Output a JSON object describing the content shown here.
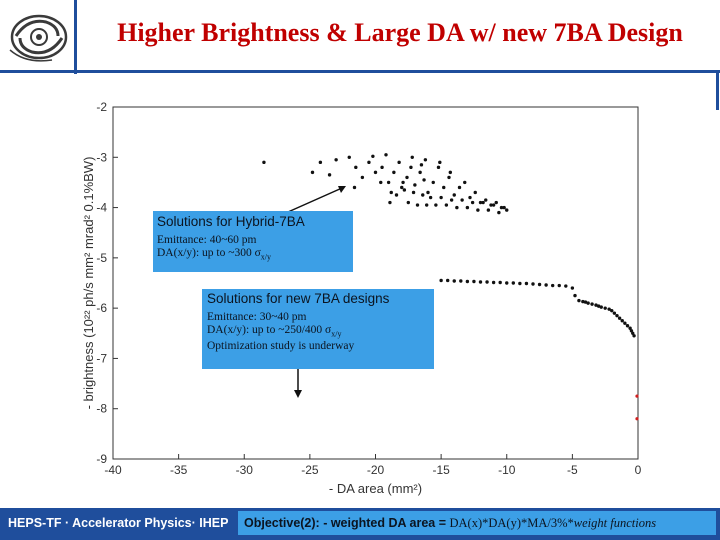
{
  "header": {
    "title": "Higher Brightness & Large DA w/ new 7BA Design"
  },
  "colors": {
    "title": "#c00000",
    "accent": "#1f4e9c",
    "box": "#3c9fe6"
  },
  "annotations": {
    "hybrid": {
      "heading": "Solutions for Hybrid-7BA",
      "line1": "Emittance: 40~60 pm",
      "line2_prefix": "DA(x/y): up to ~300 σ",
      "line2_sub": "x/y"
    },
    "new7ba": {
      "heading": "Solutions for new 7BA designs",
      "line1": "Emittance: 30~40 pm",
      "line2_prefix": "DA(x/y): up to ~250/400 σ",
      "line2_sub": "x/y",
      "line3": "Optimization study is underway"
    }
  },
  "footer": {
    "left": "HEPS-TF · Accelerator Physics· IHEP",
    "objective_label": "Objective(2):",
    "objective_text": " - weighted DA area = ",
    "formula": "DA(x)*DA(y)*MA/3%*",
    "formula_italic": "weight functions"
  },
  "chart_data": {
    "type": "scatter",
    "xlabel": "- DA area (mm²)",
    "ylabel": "- brightness (10²² ph/s mm² mrad² 0.1%BW)",
    "xlim": [
      -40,
      0
    ],
    "ylim": [
      -9,
      -2
    ],
    "xticks": [
      -40,
      -35,
      -30,
      -25,
      -20,
      -15,
      -10,
      -5,
      0
    ],
    "yticks": [
      -2,
      -3,
      -4,
      -5,
      -6,
      -7,
      -8,
      -9
    ],
    "series": [
      {
        "name": "Hybrid-7BA solutions",
        "x": [
          -28.5,
          -24.8,
          -24.2,
          -23.5,
          -23.0,
          -22.0,
          -21.5,
          -21.0,
          -20.5,
          -20.0,
          -19.5,
          -19.2,
          -19.0,
          -18.6,
          -18.2,
          -18.0,
          -17.6,
          -17.3,
          -17.0,
          -16.6,
          -16.2,
          -16.0,
          -15.6,
          -15.2,
          -14.8,
          -14.4,
          -14.0,
          -13.6,
          -13.2,
          -12.8,
          -12.4,
          -12.0,
          -11.6,
          -11.2,
          -10.8,
          -10.4,
          -10.0,
          -18.8,
          -18.4,
          -17.8,
          -17.1,
          -16.4,
          -15.8,
          -15.0,
          -14.2,
          -13.4,
          -12.6,
          -11.8,
          -11.0,
          -10.2,
          -19.6,
          -18.9,
          -17.5,
          -16.8,
          -16.1,
          -15.4,
          -14.6,
          -13.8,
          -13.0,
          -12.2,
          -11.4,
          -10.6,
          -17.2,
          -16.5,
          -15.1,
          -14.3,
          -20.2,
          -21.6,
          -17.9,
          -16.3
        ],
        "y": [
          -3.1,
          -3.3,
          -3.1,
          -3.35,
          -3.05,
          -3.0,
          -3.2,
          -3.4,
          -3.1,
          -3.3,
          -3.2,
          -2.95,
          -3.5,
          -3.3,
          -3.1,
          -3.6,
          -3.4,
          -3.2,
          -3.55,
          -3.3,
          -3.05,
          -3.7,
          -3.5,
          -3.2,
          -3.6,
          -3.4,
          -3.75,
          -3.6,
          -3.5,
          -3.8,
          -3.7,
          -3.9,
          -3.85,
          -3.95,
          -3.9,
          -4.0,
          -4.05,
          -3.7,
          -3.75,
          -3.65,
          -3.7,
          -3.75,
          -3.8,
          -3.8,
          -3.85,
          -3.85,
          -3.9,
          -3.9,
          -3.95,
          -4.0,
          -3.5,
          -3.9,
          -3.9,
          -3.95,
          -3.95,
          -3.95,
          -3.95,
          -4.0,
          -4.0,
          -4.05,
          -4.05,
          -4.1,
          -3.0,
          -3.15,
          -3.1,
          -3.3,
          -2.98,
          -3.6,
          -3.5,
          -3.45
        ]
      },
      {
        "name": "new 7BA solutions",
        "x": [
          -15.0,
          -14.5,
          -14.0,
          -13.5,
          -13.0,
          -12.5,
          -12.0,
          -11.5,
          -11.0,
          -10.5,
          -10.0,
          -9.5,
          -9.0,
          -8.5,
          -8.0,
          -7.5,
          -7.0,
          -6.5,
          -6.0,
          -5.5,
          -5.0,
          -4.8,
          -4.5,
          -4.2,
          -4.0,
          -3.8,
          -3.5,
          -3.2,
          -3.0,
          -2.8,
          -2.5,
          -2.2,
          -2.0,
          -1.8,
          -1.6,
          -1.4,
          -1.2,
          -1.0,
          -0.8,
          -0.6,
          -0.5,
          -0.4,
          -0.3
        ],
        "y": [
          -5.45,
          -5.45,
          -5.46,
          -5.46,
          -5.47,
          -5.47,
          -5.48,
          -5.48,
          -5.49,
          -5.49,
          -5.5,
          -5.5,
          -5.51,
          -5.51,
          -5.52,
          -5.53,
          -5.54,
          -5.55,
          -5.55,
          -5.56,
          -5.6,
          -5.75,
          -5.85,
          -5.87,
          -5.88,
          -5.9,
          -5.92,
          -5.94,
          -5.96,
          -5.98,
          -6.0,
          -6.02,
          -6.05,
          -6.1,
          -6.15,
          -6.2,
          -6.25,
          -6.3,
          -6.35,
          -6.4,
          -6.45,
          -6.5,
          -6.55
        ]
      }
    ],
    "highlight_points": {
      "x": [
        0.05,
        0.1
      ],
      "y": [
        -7.75,
        -8.2
      ]
    }
  }
}
